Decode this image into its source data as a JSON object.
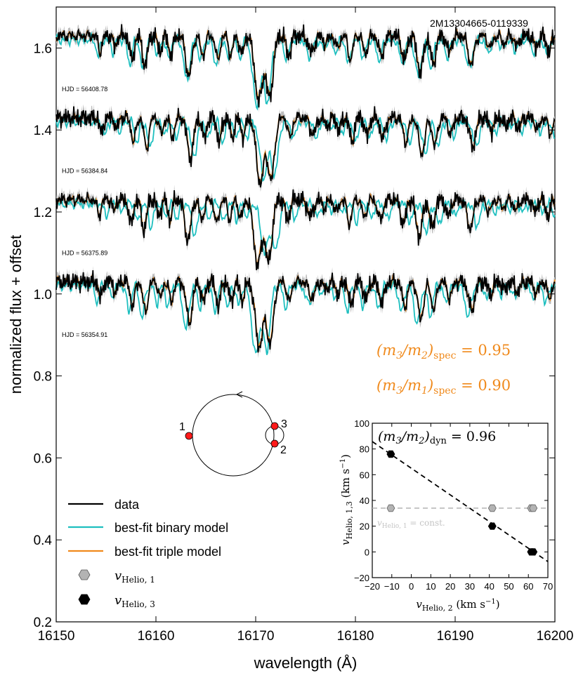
{
  "chart_data": [
    {
      "type": "line",
      "title": "",
      "object_id": "2M13304665-0119339",
      "xlabel": "wavelength (Å)",
      "ylabel": "normalized flux + offset",
      "xlim": [
        16150,
        16200
      ],
      "ylim": [
        0.2,
        1.7
      ],
      "xticks": [
        "16150",
        "16160",
        "16170",
        "16180",
        "16190",
        "16200"
      ],
      "yticks": [
        "0.2",
        "0.4",
        "0.6",
        "0.8",
        "1.0",
        "1.2",
        "1.4",
        "1.6"
      ],
      "epochs": [
        {
          "label": "HJD = 56408.78",
          "offset": 0.6
        },
        {
          "label": "HJD = 56384.84",
          "offset": 0.4
        },
        {
          "label": "HJD = 56375.89",
          "offset": 0.2
        },
        {
          "label": "HJD = 56354.91",
          "offset": 0.0
        }
      ],
      "series": [
        {
          "name": "data",
          "color": "#000000"
        },
        {
          "name": "best-fit binary model",
          "color": "#1ebfbf"
        },
        {
          "name": "best-fit triple model",
          "color": "#f08a1c"
        }
      ],
      "legend_position": "lower-left",
      "legend": {
        "items": [
          "data",
          "best-fit binary model",
          "best-fit triple model"
        ],
        "marker_1": "v",
        "marker_1_sub": "Helio, 1",
        "marker_3": "v",
        "marker_3_sub": "Helio, 3"
      },
      "annotations": {
        "m3m2_lhs": "(m",
        "m3m2_mid1": "3",
        "m3m2_mid2": "/m",
        "m3m2_mid3": "2",
        "m3m2_mid4": ")",
        "m3m2_sub": "spec",
        "m3m2_val": " = 0.95",
        "m3m1_lhs": "(m",
        "m3m1_mid1": "3",
        "m3m1_mid2": "/m",
        "m3m1_mid3": "1",
        "m3m1_mid4": ")",
        "m3m1_sub": "spec",
        "m3m1_val": " = 0.90",
        "annotation_color": "#f08a1c"
      },
      "orbit_labels": [
        "1",
        "3",
        "2"
      ]
    },
    {
      "type": "scatter",
      "title": "(m3/m2)dyn = 0.96",
      "title_parts": {
        "a": "(m",
        "b": "3",
        "c": "/m",
        "d": "2",
        "e": ")",
        "sub": "dyn",
        "val": " = 0.96"
      },
      "xlabel_main": "v",
      "xlabel_sub": "Helio, 2",
      "xlabel_units": " (km s",
      "xlabel_exp": "−1",
      "xlabel_close": ")",
      "ylabel_main": "v",
      "ylabel_sub": "Helio, 1,3",
      "ylabel_units": " (km s",
      "ylabel_exp": "−1",
      "ylabel_close": ")",
      "xlim": [
        -20,
        70
      ],
      "ylim": [
        -20,
        100
      ],
      "xticks": [
        "−20",
        "−10",
        "0",
        "10",
        "20",
        "30",
        "40",
        "50",
        "60",
        "70"
      ],
      "yticks": [
        "−20",
        "0",
        "20",
        "40",
        "60",
        "80",
        "100"
      ],
      "const_line_value": 34,
      "const_label": "v",
      "const_label_sub": "Helio, 1",
      "const_label_rest": " = const.",
      "series": [
        {
          "name": "vHelio,1",
          "color": "#b3b3b3",
          "points": [
            [
              -10.5,
              34
            ],
            [
              41.5,
              34
            ],
            [
              61.5,
              34
            ],
            [
              62.5,
              34
            ]
          ]
        },
        {
          "name": "vHelio,3",
          "color": "#000000",
          "points": [
            [
              -10.5,
              76
            ],
            [
              41.5,
              20
            ],
            [
              61.5,
              0
            ],
            [
              62.5,
              0
            ]
          ]
        }
      ],
      "fit_line": {
        "slope": -1.036,
        "intercept": 65
      }
    }
  ]
}
